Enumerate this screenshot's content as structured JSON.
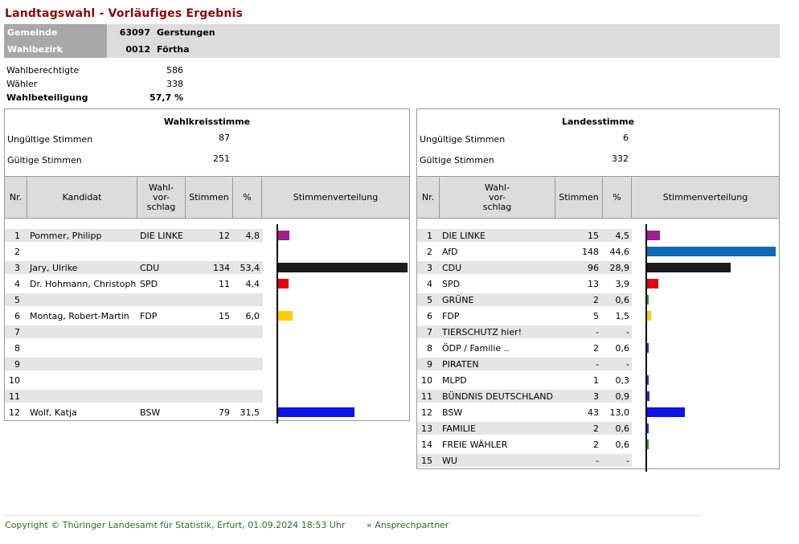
{
  "title": "Landtagswahl - Vorläufiges Ergebnis",
  "gemeinde": {
    "label": "Gemeinde",
    "code": "63097",
    "name": "Gerstungen"
  },
  "wahlbezirk": {
    "label": "Wahlbezirk",
    "code": "0012",
    "name": "Förtha"
  },
  "stats": [
    {
      "label": "Wahlberechtigte",
      "value": "586"
    },
    {
      "label": "Wähler",
      "value": "338"
    },
    {
      "label": "Wahlbeteiligung",
      "value": "57,7 %"
    }
  ],
  "wahlkreis": {
    "heading": "Wahlkreisstimme",
    "invalid_label": "Ungültige Stimmen",
    "invalid_value": "87",
    "valid_label": "Gültige Stimmen",
    "valid_value": "251",
    "headers": {
      "nr": "Nr.",
      "kandidat": "Kandidat",
      "vorschlag_1": "Wahl-",
      "vorschlag_2": "vor-",
      "vorschlag_3": "schlag",
      "stimmen": "Stimmen",
      "pct": "%",
      "verteilung": "Stimmenverteilung"
    },
    "rows": [
      {
        "nr": "1",
        "kandidat": "Pommer, Philipp",
        "vorschlag": "DIE LINKE",
        "stimmen": "12",
        "pct": "4,8",
        "share": 4.8,
        "color": "#9b1f8e"
      },
      {
        "nr": "2",
        "kandidat": "",
        "vorschlag": "",
        "stimmen": "",
        "pct": "",
        "share": 0,
        "color": ""
      },
      {
        "nr": "3",
        "kandidat": "Jary, Ulrike",
        "vorschlag": "CDU",
        "stimmen": "134",
        "pct": "53,4",
        "share": 53.4,
        "color": "#1c1c1c"
      },
      {
        "nr": "4",
        "kandidat": "Dr. Hohmann, Christoph",
        "vorschlag": "SPD",
        "stimmen": "11",
        "pct": "4,4",
        "share": 4.4,
        "color": "#e3000f"
      },
      {
        "nr": "5",
        "kandidat": "",
        "vorschlag": "",
        "stimmen": "",
        "pct": "",
        "share": 0,
        "color": ""
      },
      {
        "nr": "6",
        "kandidat": "Montag, Robert-Martin",
        "vorschlag": "FDP",
        "stimmen": "15",
        "pct": "6,0",
        "share": 6.0,
        "color": "#ffcc00"
      },
      {
        "nr": "7",
        "kandidat": "",
        "vorschlag": "",
        "stimmen": "",
        "pct": "",
        "share": 0,
        "color": ""
      },
      {
        "nr": "8",
        "kandidat": "",
        "vorschlag": "",
        "stimmen": "",
        "pct": "",
        "share": 0,
        "color": ""
      },
      {
        "nr": "9",
        "kandidat": "",
        "vorschlag": "",
        "stimmen": "",
        "pct": "",
        "share": 0,
        "color": ""
      },
      {
        "nr": "10",
        "kandidat": "",
        "vorschlag": "",
        "stimmen": "",
        "pct": "",
        "share": 0,
        "color": ""
      },
      {
        "nr": "11",
        "kandidat": "",
        "vorschlag": "",
        "stimmen": "",
        "pct": "",
        "share": 0,
        "color": ""
      },
      {
        "nr": "12",
        "kandidat": "Wolf, Katja",
        "vorschlag": "BSW",
        "stimmen": "79",
        "pct": "31,5",
        "share": 31.5,
        "color": "#0a14e6"
      }
    ]
  },
  "landes": {
    "heading": "Landesstimme",
    "invalid_label": "Ungültige Stimmen",
    "invalid_value": "6",
    "valid_label": "Gültige Stimmen",
    "valid_value": "332",
    "headers": {
      "nr": "Nr.",
      "vorschlag_1": "Wahl-",
      "vorschlag_2": "vor-",
      "vorschlag_3": "schlag",
      "stimmen": "Stimmen",
      "pct": "%",
      "verteilung": "Stimmenverteilung"
    },
    "rows": [
      {
        "nr": "1",
        "vorschlag": "DIE LINKE",
        "stimmen": "15",
        "pct": "4,5",
        "share": 4.5,
        "color": "#9b1f8e"
      },
      {
        "nr": "2",
        "vorschlag": "AfD",
        "stimmen": "148",
        "pct": "44,6",
        "share": 44.6,
        "color": "#0a6ab5"
      },
      {
        "nr": "3",
        "vorschlag": "CDU",
        "stimmen": "96",
        "pct": "28,9",
        "share": 28.9,
        "color": "#1c1c1c"
      },
      {
        "nr": "4",
        "vorschlag": "SPD",
        "stimmen": "13",
        "pct": "3,9",
        "share": 3.9,
        "color": "#e3000f"
      },
      {
        "nr": "5",
        "vorschlag": "GRÜNE",
        "stimmen": "2",
        "pct": "0,6",
        "share": 0.6,
        "color": "#1aa037"
      },
      {
        "nr": "6",
        "vorschlag": "FDP",
        "stimmen": "5",
        "pct": "1,5",
        "share": 1.5,
        "color": "#ffcc00"
      },
      {
        "nr": "7",
        "vorschlag": "TIERSCHUTZ hier!",
        "stimmen": "-",
        "pct": "-",
        "share": 0,
        "color": ""
      },
      {
        "nr": "8",
        "vorschlag": "ÖDP / Familie ..",
        "stimmen": "2",
        "pct": "0,6",
        "share": 0.6,
        "color": "#1e2fd6"
      },
      {
        "nr": "9",
        "vorschlag": "PIRATEN",
        "stimmen": "-",
        "pct": "-",
        "share": 0,
        "color": ""
      },
      {
        "nr": "10",
        "vorschlag": "MLPD",
        "stimmen": "1",
        "pct": "0,3",
        "share": 0.3,
        "color": "#1e2fd6"
      },
      {
        "nr": "11",
        "vorschlag": "BÜNDNIS DEUTSCHLAND",
        "stimmen": "3",
        "pct": "0,9",
        "share": 0.9,
        "color": "#1e2fd6"
      },
      {
        "nr": "12",
        "vorschlag": "BSW",
        "stimmen": "43",
        "pct": "13,0",
        "share": 13.0,
        "color": "#0a14e6"
      },
      {
        "nr": "13",
        "vorschlag": "FAMILIE",
        "stimmen": "2",
        "pct": "0,6",
        "share": 0.6,
        "color": "#1e2fd6"
      },
      {
        "nr": "14",
        "vorschlag": "FREIE WÄHLER",
        "stimmen": "2",
        "pct": "0,6",
        "share": 0.6,
        "color": "#1aa037"
      },
      {
        "nr": "15",
        "vorschlag": "WU",
        "stimmen": "-",
        "pct": "-",
        "share": 0,
        "color": ""
      }
    ]
  },
  "footer": {
    "copyright": "Copyright © Thüringer Landesamt für Statistik, Erfurt, 01.09.2024 18:53 Uhr",
    "link": "» Ansprechpartner"
  }
}
